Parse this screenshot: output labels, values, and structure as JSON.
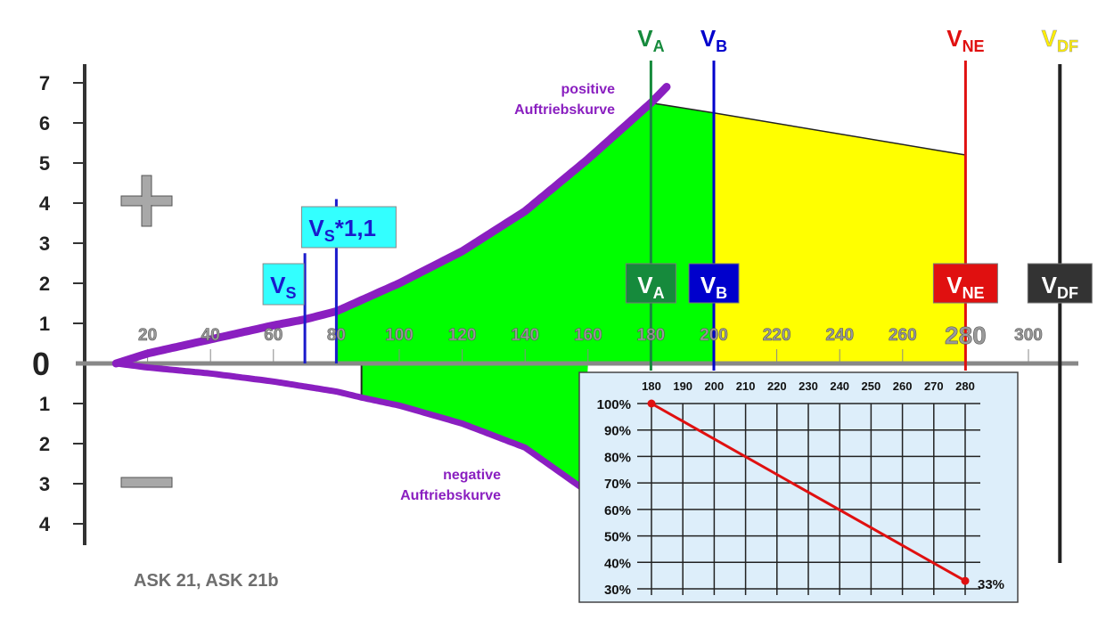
{
  "chart_data": [
    {
      "type": "area",
      "title": "",
      "y_axis": {
        "positive_ticks": [
          "1",
          "2",
          "3",
          "4",
          "5",
          "6",
          "7"
        ],
        "zero_label": "0",
        "negative_ticks": [
          "1",
          "2",
          "3",
          "4"
        ],
        "range": [
          -4,
          7
        ]
      },
      "x_axis": {
        "ticks": [
          20,
          40,
          60,
          80,
          100,
          120,
          140,
          160,
          180,
          200,
          220,
          240,
          260,
          280,
          300
        ],
        "emphasized_tick": 280,
        "range": [
          5,
          318
        ]
      },
      "positive_sign": "+",
      "negative_sign": "−",
      "positive_curve": {
        "label_line1": "positive",
        "label_line2": "Auftriebskurve",
        "x": [
          10,
          20,
          40,
          60,
          70,
          80,
          100,
          120,
          140,
          160,
          180,
          185
        ],
        "y": [
          0,
          0.25,
          0.6,
          0.95,
          1.1,
          1.3,
          2.0,
          2.8,
          3.8,
          5.1,
          6.5,
          6.9
        ]
      },
      "negative_curve": {
        "label_line1": "negative",
        "label_line2": "Auftriebskurve",
        "x": [
          10,
          20,
          40,
          60,
          80,
          88,
          100,
          120,
          140,
          158
        ],
        "y": [
          0,
          -0.1,
          -0.25,
          -0.45,
          -0.7,
          -0.85,
          -1.05,
          -1.5,
          -2.1,
          -3.1
        ]
      },
      "envelope_green": {
        "x_start": 80,
        "x_end": 200,
        "lower_left_x": 88,
        "lower_left_y": -0.85,
        "top_at_180": 6.5,
        "top_at_200": 6.25,
        "color": "#00ff00"
      },
      "envelope_yellow": {
        "x_start": 200,
        "x_end": 280,
        "top_at_200": 6.25,
        "top_at_280": 5.2,
        "color": "#ffff00"
      },
      "speeds": [
        {
          "key": "vs",
          "x": 70,
          "main": "V",
          "sub": "S",
          "suffix": "",
          "line_color": "#1a1acc",
          "fill": "#33ffff",
          "text_color": "#1a1acc",
          "line_top": 2.75
        },
        {
          "key": "vs11",
          "x": 80,
          "main": "V",
          "sub": "S",
          "suffix": "*1,1",
          "line_color": "#1a1acc",
          "fill": "#33ffff",
          "text_color": "#1a1acc",
          "line_top": 4.1
        },
        {
          "key": "va",
          "x": 180,
          "main": "V",
          "sub": "A",
          "suffix": "",
          "line_color": "#168a3c",
          "fill": "#168a3c",
          "text_color": "#ffffff",
          "top_color": "#168a3c"
        },
        {
          "key": "vb",
          "x": 200,
          "main": "V",
          "sub": "B",
          "suffix": "",
          "line_color": "#0000cc",
          "fill": "#0000cc",
          "text_color": "#ffffff",
          "top_color": "#0000cc"
        },
        {
          "key": "vne",
          "x": 280,
          "main": "V",
          "sub": "NE",
          "suffix": "",
          "line_color": "#e01010",
          "fill": "#e01010",
          "text_color": "#ffffff",
          "top_color": "#e01010"
        },
        {
          "key": "vdf",
          "x": 310,
          "main": "V",
          "sub": "DF",
          "suffix": "",
          "line_color": "#222222",
          "fill": "#333333",
          "text_color": "#ffffff",
          "top_color": "#ffee00"
        }
      ],
      "model_label": "ASK 21, ASK 21b"
    },
    {
      "type": "line",
      "x_ticks": [
        180,
        190,
        200,
        210,
        220,
        230,
        240,
        250,
        260,
        270,
        280
      ],
      "y_ticks": [
        "100%",
        "90%",
        "80%",
        "70%",
        "60%",
        "50%",
        "40%",
        "30%"
      ],
      "ylim": [
        30,
        100
      ],
      "series": [
        {
          "x": [
            180,
            280
          ],
          "y": [
            100,
            33
          ],
          "color": "#e01010"
        }
      ],
      "end_label": "33%",
      "background": "#ddeefa"
    }
  ]
}
